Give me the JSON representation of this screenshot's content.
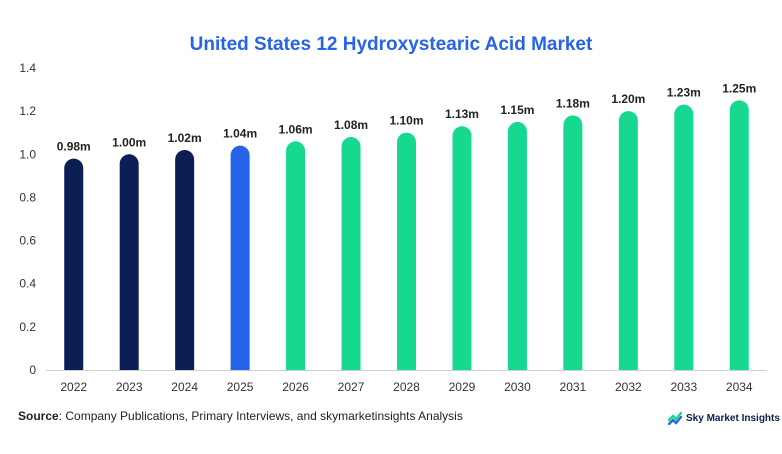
{
  "chart_data": {
    "type": "bar",
    "title": "United States 12 Hydroxystearic Acid Market",
    "categories": [
      "2022",
      "2023",
      "2024",
      "2025",
      "2026",
      "2027",
      "2028",
      "2029",
      "2030",
      "2031",
      "2032",
      "2033",
      "2034"
    ],
    "values": [
      0.98,
      1.0,
      1.02,
      1.04,
      1.06,
      1.08,
      1.1,
      1.13,
      1.15,
      1.18,
      1.2,
      1.23,
      1.25
    ],
    "data_labels": [
      "0.98m",
      "1.00m",
      "1.02m",
      "1.04m",
      "1.06m",
      "1.08m",
      "1.10m",
      "1.13m",
      "1.15m",
      "1.18m",
      "1.20m",
      "1.23m",
      "1.25m"
    ],
    "ylim": [
      0,
      1.4
    ],
    "yticks": [
      0,
      0.2,
      0.4,
      0.6,
      0.8,
      1.0,
      1.2,
      1.4
    ],
    "ytick_labels": [
      "0",
      "0.2",
      "0.4",
      "0.6",
      "0.8",
      "1.0",
      "1.2",
      "1.4"
    ],
    "xlabel": "",
    "ylabel": "",
    "grid": false,
    "colors": {
      "historical": "#0b1f55",
      "current": "#2563eb",
      "forecast": "#16d88e",
      "title": "#2563eb"
    },
    "bar_color_groups": [
      "historical",
      "historical",
      "historical",
      "current",
      "forecast",
      "forecast",
      "forecast",
      "forecast",
      "forecast",
      "forecast",
      "forecast",
      "forecast",
      "forecast"
    ]
  },
  "source": {
    "label": "Source",
    "text": ": Company Publications, Primary Interviews, and skymarketinsights Analysis"
  },
  "brand": {
    "name": "Sky Market Insights",
    "icon": "sky-market-insights-logo-icon"
  }
}
